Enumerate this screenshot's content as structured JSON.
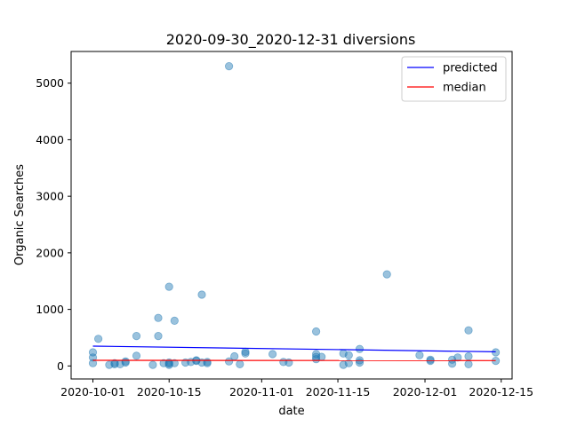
{
  "chart_data": {
    "type": "scatter",
    "title": "2020-09-30_2020-12-31 diversions",
    "xlabel": "date",
    "ylabel": "Organic Searches",
    "xlim": [
      "2020-09-27",
      "2020-12-17"
    ],
    "ylim": [
      -230,
      5560
    ],
    "grid": false,
    "legend_position": "top-right",
    "x_ticks": [
      "2020-10-01",
      "2020-10-15",
      "2020-11-01",
      "2020-11-15",
      "2020-12-01",
      "2020-12-15"
    ],
    "y_ticks": [
      0,
      1000,
      2000,
      3000,
      4000,
      5000
    ],
    "colors": {
      "points": "#1f77b4",
      "predicted": "#0000ff",
      "median": "#ff0000"
    },
    "points": [
      {
        "x": "2020-10-01",
        "y": 240
      },
      {
        "x": "2020-10-01",
        "y": 150
      },
      {
        "x": "2020-10-01",
        "y": 50
      },
      {
        "x": "2020-10-02",
        "y": 480
      },
      {
        "x": "2020-10-04",
        "y": 20
      },
      {
        "x": "2020-10-05",
        "y": 50
      },
      {
        "x": "2020-10-05",
        "y": 30
      },
      {
        "x": "2020-10-06",
        "y": 30
      },
      {
        "x": "2020-10-07",
        "y": 80
      },
      {
        "x": "2020-10-07",
        "y": 60
      },
      {
        "x": "2020-10-09",
        "y": 180
      },
      {
        "x": "2020-10-09",
        "y": 530
      },
      {
        "x": "2020-10-12",
        "y": 20
      },
      {
        "x": "2020-10-13",
        "y": 850
      },
      {
        "x": "2020-10-13",
        "y": 530
      },
      {
        "x": "2020-10-14",
        "y": 50
      },
      {
        "x": "2020-10-15",
        "y": 1400
      },
      {
        "x": "2020-10-15",
        "y": 60
      },
      {
        "x": "2020-10-15",
        "y": 20
      },
      {
        "x": "2020-10-15",
        "y": 40
      },
      {
        "x": "2020-10-16",
        "y": 800
      },
      {
        "x": "2020-10-16",
        "y": 50
      },
      {
        "x": "2020-10-18",
        "y": 60
      },
      {
        "x": "2020-10-19",
        "y": 70
      },
      {
        "x": "2020-10-20",
        "y": 100
      },
      {
        "x": "2020-10-20",
        "y": 90
      },
      {
        "x": "2020-10-21",
        "y": 1260
      },
      {
        "x": "2020-10-21",
        "y": 60
      },
      {
        "x": "2020-10-22",
        "y": 50
      },
      {
        "x": "2020-10-22",
        "y": 70
      },
      {
        "x": "2020-10-26",
        "y": 5300
      },
      {
        "x": "2020-10-26",
        "y": 80
      },
      {
        "x": "2020-10-27",
        "y": 170
      },
      {
        "x": "2020-10-28",
        "y": 30
      },
      {
        "x": "2020-10-29",
        "y": 250
      },
      {
        "x": "2020-10-29",
        "y": 220
      },
      {
        "x": "2020-11-03",
        "y": 210
      },
      {
        "x": "2020-11-05",
        "y": 70
      },
      {
        "x": "2020-11-06",
        "y": 60
      },
      {
        "x": "2020-11-11",
        "y": 610
      },
      {
        "x": "2020-11-11",
        "y": 210
      },
      {
        "x": "2020-11-11",
        "y": 160
      },
      {
        "x": "2020-11-11",
        "y": 120
      },
      {
        "x": "2020-11-12",
        "y": 160
      },
      {
        "x": "2020-11-16",
        "y": 220
      },
      {
        "x": "2020-11-16",
        "y": 20
      },
      {
        "x": "2020-11-17",
        "y": 190
      },
      {
        "x": "2020-11-17",
        "y": 50
      },
      {
        "x": "2020-11-19",
        "y": 300
      },
      {
        "x": "2020-11-19",
        "y": 100
      },
      {
        "x": "2020-11-19",
        "y": 60
      },
      {
        "x": "2020-11-24",
        "y": 1620
      },
      {
        "x": "2020-11-30",
        "y": 190
      },
      {
        "x": "2020-12-02",
        "y": 110
      },
      {
        "x": "2020-12-02",
        "y": 90
      },
      {
        "x": "2020-12-06",
        "y": 110
      },
      {
        "x": "2020-12-06",
        "y": 40
      },
      {
        "x": "2020-12-07",
        "y": 150
      },
      {
        "x": "2020-12-09",
        "y": 630
      },
      {
        "x": "2020-12-09",
        "y": 170
      },
      {
        "x": "2020-12-09",
        "y": 30
      },
      {
        "x": "2020-12-14",
        "y": 240
      },
      {
        "x": "2020-12-14",
        "y": 90
      }
    ],
    "series": [
      {
        "name": "predicted",
        "type": "line",
        "x": [
          "2020-10-01",
          "2020-12-14"
        ],
        "y": [
          350,
          250
        ]
      },
      {
        "name": "median",
        "type": "line",
        "x": [
          "2020-10-01",
          "2020-12-14"
        ],
        "y": [
          100,
          95
        ]
      }
    ]
  }
}
